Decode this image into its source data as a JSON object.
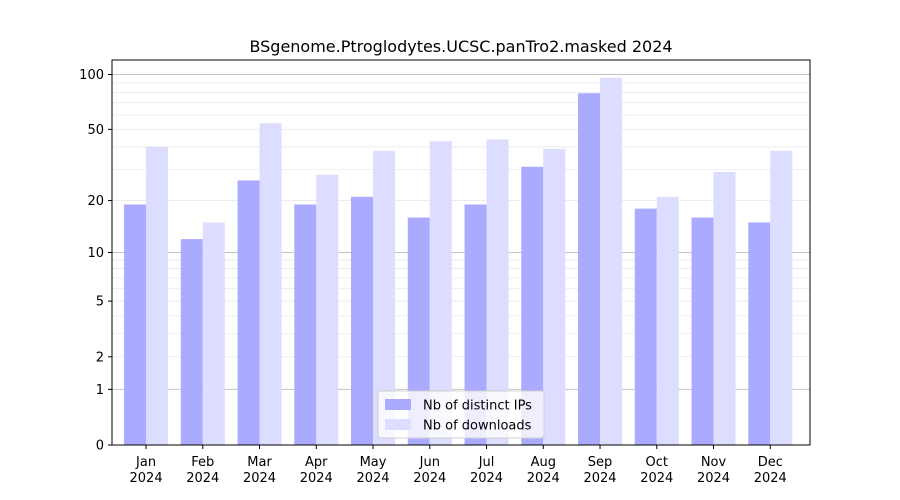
{
  "chart_data": {
    "type": "bar",
    "title": "BSgenome.Ptroglodytes.UCSC.panTro2.masked 2024",
    "xlabel": "",
    "ylabel": "",
    "y_scale": "log(1+y)",
    "ylim": [
      0,
      120
    ],
    "yticks": [
      0,
      1,
      2,
      5,
      10,
      20,
      50,
      100
    ],
    "categories": [
      "Jan\n2024",
      "Feb\n2024",
      "Mar\n2024",
      "Apr\n2024",
      "May\n2024",
      "Jun\n2024",
      "Jul\n2024",
      "Aug\n2024",
      "Sep\n2024",
      "Oct\n2024",
      "Nov\n2024",
      "Dec\n2024"
    ],
    "series": [
      {
        "name": "Nb of distinct IPs",
        "color": "#aaaaff",
        "values": [
          19,
          12,
          26,
          19,
          21,
          16,
          19,
          31,
          79,
          18,
          16,
          15
        ]
      },
      {
        "name": "Nb of downloads",
        "color": "#ddddff",
        "values": [
          40,
          15,
          54,
          28,
          38,
          43,
          44,
          39,
          96,
          21,
          29,
          38
        ]
      }
    ],
    "grid": true,
    "legend_position": "bottom-center"
  }
}
